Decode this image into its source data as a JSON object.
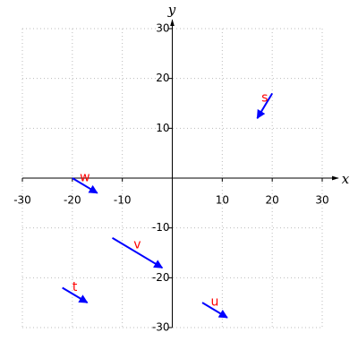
{
  "chart_data": {
    "type": "quiver",
    "xlabel": "x",
    "ylabel": "y",
    "xlim": [
      -30,
      30
    ],
    "ylim": [
      -30,
      30
    ],
    "xticks": [
      -30,
      -20,
      -10,
      10,
      20,
      30
    ],
    "yticks": [
      -30,
      -20,
      -10,
      10,
      20,
      30
    ],
    "grid": true,
    "color": "#0000ff",
    "label_color": "#ff0000",
    "vectors": [
      {
        "label": "s",
        "x": 20,
        "y": 17,
        "dx": -3,
        "dy": -5
      },
      {
        "label": "w",
        "x": -20,
        "y": 0,
        "dx": 5,
        "dy": -3
      },
      {
        "label": "v",
        "x": -12,
        "y": -12,
        "dx": 10,
        "dy": -6
      },
      {
        "label": "t",
        "x": -22,
        "y": -22,
        "dx": 5,
        "dy": -3
      },
      {
        "label": "u",
        "x": 6,
        "y": -25,
        "dx": 5,
        "dy": -3
      }
    ]
  }
}
